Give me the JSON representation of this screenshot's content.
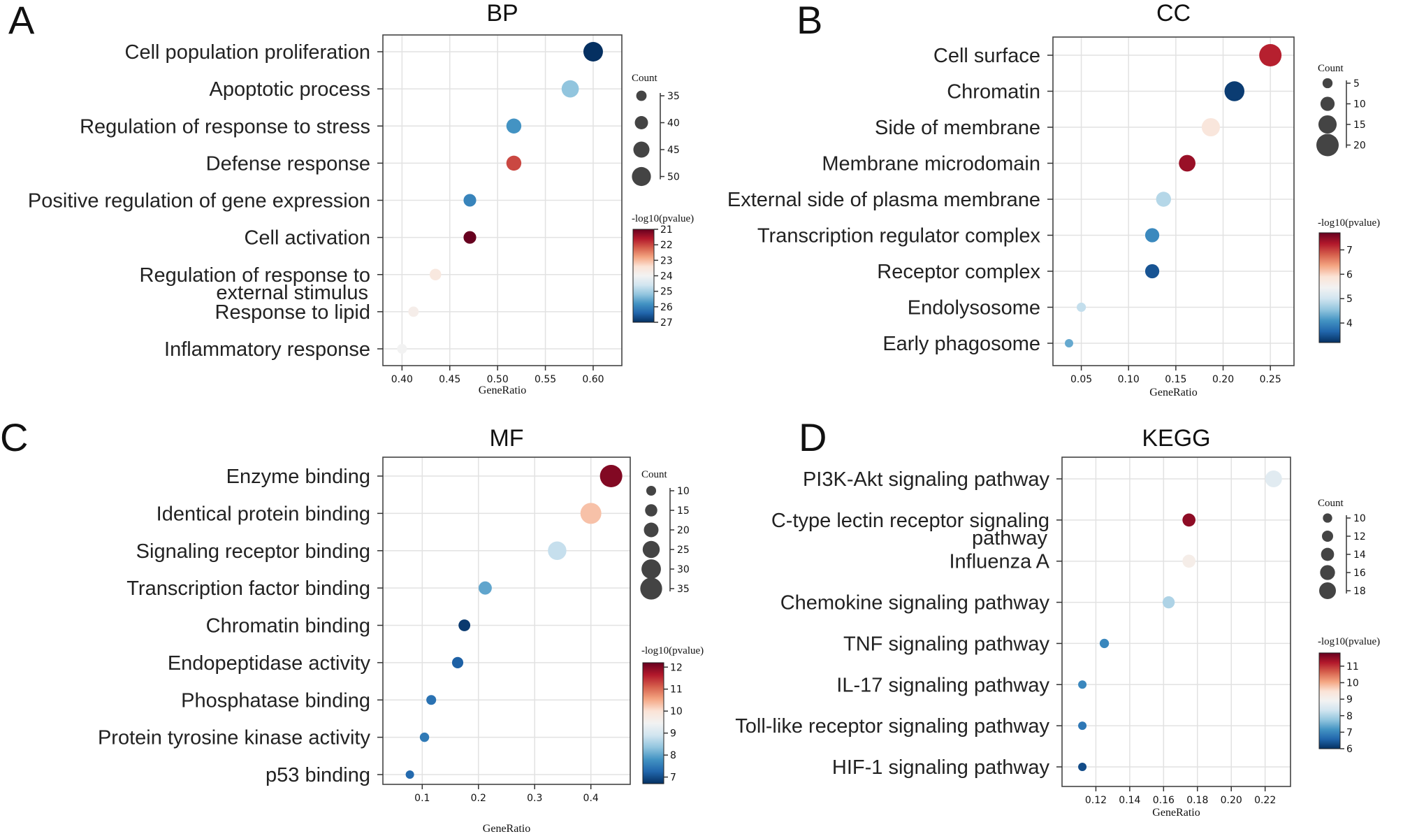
{
  "chart_data": [
    {
      "panel": "A",
      "title": "BP",
      "type": "scatter",
      "xlabel": "GeneRatio",
      "xlim": [
        0.38,
        0.63
      ],
      "xticks": [
        0.4,
        0.45,
        0.5,
        0.55,
        0.6
      ],
      "xtick_labels": [
        "0.40",
        "0.45",
        "0.50",
        "0.55",
        "0.60"
      ],
      "categories": [
        [
          "Cell population proliferation"
        ],
        [
          "Apoptotic process"
        ],
        [
          "Regulation of response to stress"
        ],
        [
          "Defense response"
        ],
        [
          "Positive regulation of gene expression"
        ],
        [
          "Cell activation"
        ],
        [
          "Regulation of response to",
          "external stimulus"
        ],
        [
          "Response to lipid"
        ],
        [
          "Inflammatory response"
        ]
      ],
      "x": [
        0.6,
        0.576,
        0.517,
        0.517,
        0.471,
        0.471,
        0.435,
        0.412,
        0.4
      ],
      "color_value": [
        27.0,
        25.2,
        25.8,
        22.0,
        26.0,
        21.0,
        23.6,
        23.8,
        24.0
      ],
      "count": [
        51,
        47,
        43,
        43,
        39,
        39,
        37,
        35,
        34
      ],
      "size_legend": {
        "title": "Count",
        "values": [
          35,
          40,
          45,
          50
        ]
      },
      "color_legend": {
        "title": "-log10(pvalue)",
        "range": [
          21,
          27
        ],
        "ticks": [
          21,
          22,
          23,
          24,
          25,
          26,
          27
        ],
        "reversed": false
      }
    },
    {
      "panel": "B",
      "title": "CC",
      "type": "scatter",
      "xlabel": "GeneRatio",
      "xlim": [
        0.02,
        0.275
      ],
      "xticks": [
        0.05,
        0.1,
        0.15,
        0.2,
        0.25
      ],
      "xtick_labels": [
        "0.05",
        "0.10",
        "0.15",
        "0.20",
        "0.25"
      ],
      "categories": [
        [
          "Cell surface"
        ],
        [
          "Chromatin"
        ],
        [
          "Side of membrane"
        ],
        [
          "Membrane microdomain"
        ],
        [
          "External side of plasma membrane"
        ],
        [
          "Transcription regulator complex"
        ],
        [
          "Receptor complex"
        ],
        [
          "Endolysosome"
        ],
        [
          "Early phagosome"
        ]
      ],
      "x": [
        0.25,
        0.212,
        0.187,
        0.162,
        0.137,
        0.125,
        0.125,
        0.05,
        0.037
      ],
      "color_value": [
        7.2,
        3.3,
        5.8,
        7.4,
        4.8,
        4.0,
        3.5,
        4.9,
        4.3
      ],
      "count": [
        20,
        17,
        15,
        13,
        11,
        10,
        10,
        4,
        3
      ],
      "size_legend": {
        "title": "Count",
        "values": [
          5,
          10,
          15,
          20
        ]
      },
      "color_legend": {
        "title": "-log10(pvalue)",
        "range": [
          3.2,
          7.7
        ],
        "ticks": [
          4,
          5,
          6,
          7
        ],
        "reversed": true
      }
    },
    {
      "panel": "C",
      "title": "MF",
      "type": "scatter",
      "xlabel": "GeneRatio",
      "xlim": [
        0.03,
        0.47
      ],
      "xticks": [
        0.1,
        0.2,
        0.3,
        0.4
      ],
      "xtick_labels": [
        "0.1",
        "0.2",
        "0.3",
        "0.4"
      ],
      "categories": [
        [
          "Enzyme binding"
        ],
        [
          "Identical protein binding"
        ],
        [
          "Signaling receptor binding"
        ],
        [
          "Transcription factor binding"
        ],
        [
          "Chromatin binding"
        ],
        [
          "Endopeptidase activity"
        ],
        [
          "Phosphatase binding"
        ],
        [
          "Protein tyrosine kinase activity"
        ],
        [
          "p53 binding"
        ]
      ],
      "x": [
        0.436,
        0.4,
        0.34,
        0.212,
        0.175,
        0.163,
        0.116,
        0.104,
        0.078
      ],
      "color_value": [
        12.0,
        10.3,
        8.8,
        8.0,
        6.8,
        7.2,
        7.4,
        7.5,
        7.3
      ],
      "count": [
        36,
        33,
        28,
        17,
        14,
        13,
        10,
        9,
        7
      ],
      "size_legend": {
        "title": "Count",
        "values": [
          10,
          15,
          20,
          25,
          30,
          35
        ]
      },
      "color_legend": {
        "title": "-log10(pvalue)",
        "range": [
          6.7,
          12.2
        ],
        "ticks": [
          7,
          8,
          9,
          10,
          11,
          12
        ],
        "reversed": true
      }
    },
    {
      "panel": "D",
      "title": "KEGG",
      "type": "scatter",
      "xlabel": "GeneRatio",
      "xlim": [
        0.1,
        0.235
      ],
      "xticks": [
        0.12,
        0.14,
        0.16,
        0.18,
        0.2,
        0.22
      ],
      "xtick_labels": [
        "0.12",
        "0.14",
        "0.16",
        "0.18",
        "0.20",
        "0.22"
      ],
      "categories": [
        [
          "PI3K-Akt signaling pathway"
        ],
        [
          "C-type lectin receptor signaling",
          "pathway"
        ],
        [
          "Influenza A"
        ],
        [
          "Chemokine signaling pathway"
        ],
        [
          "TNF signaling pathway"
        ],
        [
          "IL-17 signaling pathway"
        ],
        [
          "Toll-like receptor signaling pathway"
        ],
        [
          "HIF-1 signaling pathway"
        ]
      ],
      "x": [
        0.225,
        0.175,
        0.175,
        0.163,
        0.125,
        0.112,
        0.112,
        0.112
      ],
      "color_value": [
        8.6,
        11.5,
        9.1,
        8.0,
        7.0,
        7.0,
        6.8,
        6.3
      ],
      "count": [
        18,
        14,
        14,
        13,
        10,
        9,
        9,
        9
      ],
      "size_legend": {
        "title": "Count",
        "values": [
          10,
          12,
          14,
          16,
          18
        ]
      },
      "color_legend": {
        "title": "-log10(pvalue)",
        "range": [
          6,
          11.8
        ],
        "ticks": [
          6,
          7,
          8,
          9,
          10,
          11
        ],
        "reversed": true
      }
    }
  ]
}
